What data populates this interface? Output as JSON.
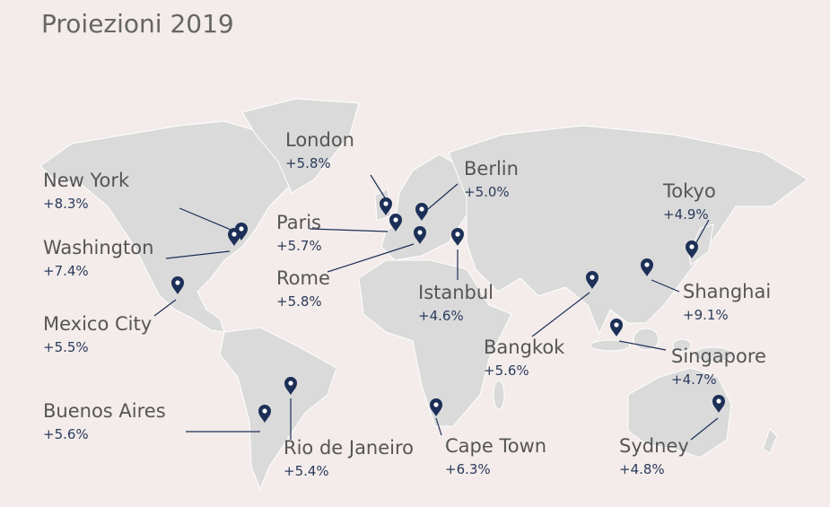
{
  "title": "Proiezioni 2019",
  "cities": [
    {
      "name": "London",
      "growth": "+5.8%"
    },
    {
      "name": "New York",
      "growth": "+8.3%"
    },
    {
      "name": "Washington",
      "growth": "+7.4%"
    },
    {
      "name": "Paris",
      "growth": "+5.7%"
    },
    {
      "name": "Berlin",
      "growth": "+5.0%"
    },
    {
      "name": "Rome",
      "growth": "+5.8%"
    },
    {
      "name": "Istanbul",
      "growth": "+4.6%"
    },
    {
      "name": "Tokyo",
      "growth": "+4.9%"
    },
    {
      "name": "Shanghai",
      "growth": "+9.1%"
    },
    {
      "name": "Mexico City",
      "growth": "+5.5%"
    },
    {
      "name": "Bangkok",
      "growth": "+5.6%"
    },
    {
      "name": "Singapore",
      "growth": "+4.7%"
    },
    {
      "name": "Buenos Aires",
      "growth": "+5.6%"
    },
    {
      "name": "Rio de Janeiro",
      "growth": "+5.4%"
    },
    {
      "name": "Cape Town",
      "growth": "+6.3%"
    },
    {
      "name": "Sydney",
      "growth": "+4.8%"
    }
  ]
}
